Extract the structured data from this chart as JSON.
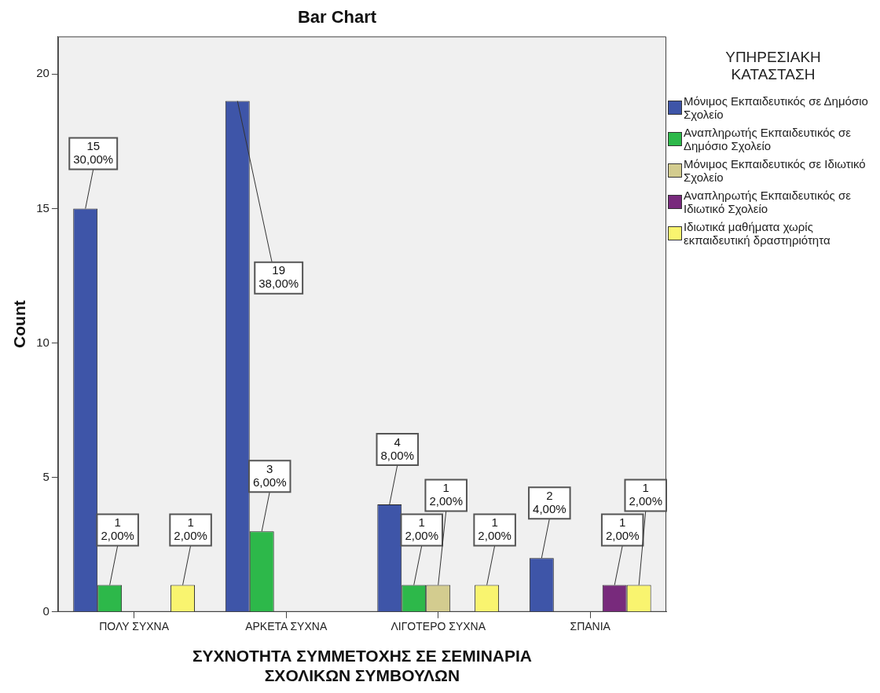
{
  "chart_data": {
    "type": "bar",
    "title": "Bar Chart",
    "xlabel": "ΣΥΧΝΟΤΗΤΑ ΣΥΜΜΕΤΟΧΗΣ ΣΕ ΣΕΜΙΝΑΡΙΑ ΣΧΟΛΙΚΩΝ ΣΥΜΒΟΥΛΩΝ",
    "ylabel": "Count",
    "legend_title": "ΥΠΗΡΕΣΙΑΚΗ ΚΑΤΑΣΤΑΣΗ",
    "legend": "right",
    "grid": false,
    "categories": [
      "ΠΟΛΥ ΣΥΧΝΑ",
      "ΑΡΚΕΤΑ ΣΥΧΝΑ",
      "ΛΙΓΟΤΕΡΟ ΣΥΧΝΑ",
      "ΣΠΑΝΙΑ"
    ],
    "ylim": [
      0,
      21.4
    ],
    "yticks": [
      0,
      5,
      10,
      15,
      20
    ],
    "series": [
      {
        "name": "Μόνιμος Εκπαιδευτικός σε Δημόσιο Σχολείο",
        "color": "#3e55a8",
        "values": [
          15,
          19,
          4,
          2
        ],
        "value_labels": [
          "15\n30,00%",
          "19\n38,00%",
          "4\n8,00%",
          "2\n4,00%"
        ]
      },
      {
        "name": "Αναπληρωτής Εκπαιδευτικός σε Δημόσιο Σχολείο",
        "color": "#2db84a",
        "values": [
          1,
          3,
          1,
          null
        ],
        "value_labels": [
          "1\n2,00%",
          "3\n6,00%",
          "1\n2,00%",
          null
        ]
      },
      {
        "name": "Μόνιμος Εκπαιδευτικός σε Ιδιωτικό Σχολείο",
        "color": "#d3cc8f",
        "values": [
          null,
          null,
          1,
          null
        ],
        "value_labels": [
          null,
          null,
          "1\n2,00%",
          null
        ]
      },
      {
        "name": "Αναπληρωτής Εκπαιδευτικός σε Ιδιωτικό Σχολείο",
        "color": "#782a7c",
        "values": [
          null,
          null,
          null,
          1
        ],
        "value_labels": [
          null,
          null,
          null,
          "1\n2,00%"
        ]
      },
      {
        "name": "Ιδιωτικά μαθήματα χωρίς εκπαιδευτική δραστηριότητα",
        "color": "#f9f46f",
        "values": [
          1,
          null,
          1,
          1
        ],
        "value_labels": [
          "1\n2,00%",
          null,
          "1\n2,00%",
          "1\n2,00%"
        ]
      }
    ]
  }
}
